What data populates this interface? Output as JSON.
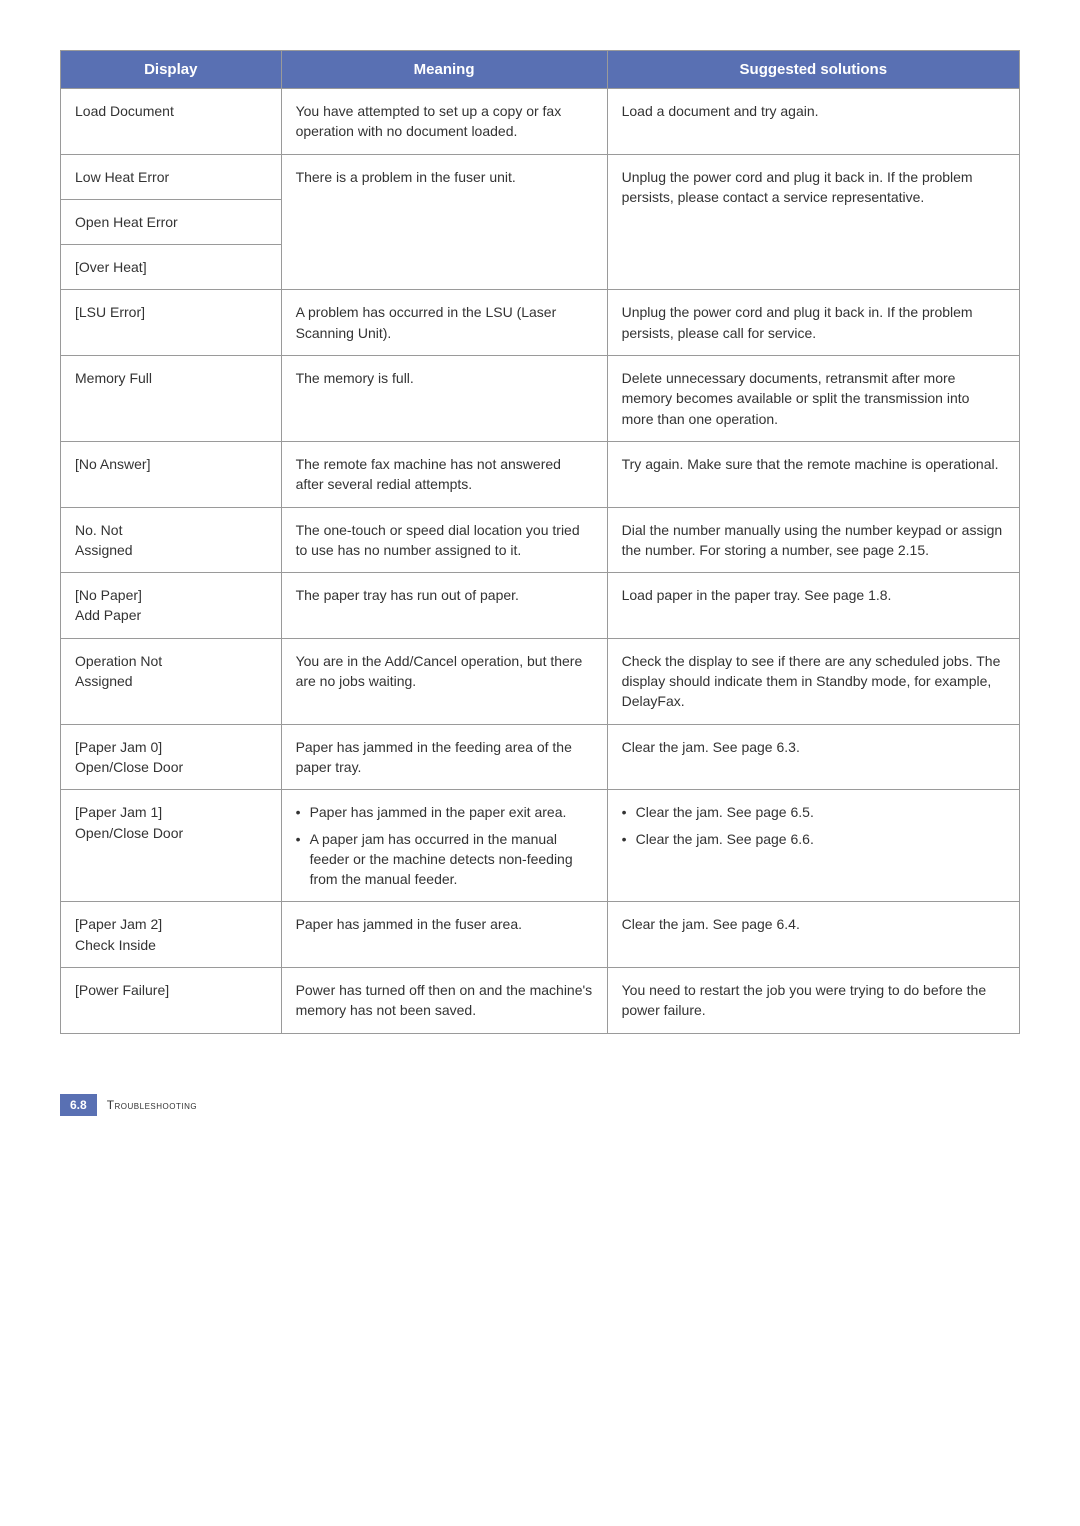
{
  "table": {
    "headers": {
      "display": "Display",
      "meaning": "Meaning",
      "solutions": "Suggested solutions"
    },
    "header_bg": "#5970b3",
    "header_text_color": "#ffffff",
    "border_color": "#9a9a9a",
    "rows": [
      {
        "display": "Load Document",
        "meaning": "You have attempted to set up a copy or fax operation with no document loaded.",
        "solution": "Load a document and try again."
      },
      {
        "display": "Low Heat Error",
        "meaning": "There is a problem in the fuser unit.",
        "solution": "Unplug the power cord and plug it back in. If the problem persists, please contact a service representative.",
        "meaning_rowspan": 3,
        "solution_rowspan": 3
      },
      {
        "display": "Open Heat Error"
      },
      {
        "display": "[Over Heat]"
      },
      {
        "display": "[LSU Error]",
        "meaning": "A problem has occurred in the LSU (Laser Scanning Unit).",
        "solution": "Unplug the power cord and plug it back in. If the problem persists, please call for service."
      },
      {
        "display": "Memory Full",
        "meaning": "The memory is full.",
        "solution": "Delete unnecessary documents, retransmit after more memory becomes available or split the transmission into more than one operation."
      },
      {
        "display": "[No Answer]",
        "meaning": "The remote fax machine has not answered after several redial attempts.",
        "solution": "Try again. Make sure that the remote machine is operational."
      },
      {
        "display": "No. Not\nAssigned",
        "meaning": "The one-touch or speed dial location you tried to use has no number assigned to it.",
        "solution": "Dial the number manually using the number keypad or assign the number. For storing a number, see page 2.15."
      },
      {
        "display": "[No Paper]\nAdd Paper",
        "meaning": "The paper tray has run out of paper.",
        "solution": "Load paper in the paper tray. See page 1.8."
      },
      {
        "display": "Operation Not\nAssigned",
        "meaning": "You are in the Add/Cancel operation, but there are no jobs waiting.",
        "solution": "Check the display to see if there are any scheduled jobs. The display should indicate them in Standby mode, for example, DelayFax."
      },
      {
        "display": "[Paper Jam 0]\nOpen/Close Door",
        "meaning": "Paper has jammed in the feeding area of the paper tray.",
        "solution": "Clear the jam. See page 6.3."
      },
      {
        "display": "[Paper Jam 1]\nOpen/Close Door",
        "meaning_list": [
          "Paper has jammed in the paper exit area.",
          "A paper jam has occurred in the manual feeder or the machine detects non-feeding from the manual feeder."
        ],
        "solution_list": [
          "Clear the jam. See page 6.5.",
          "Clear the jam. See page 6.6."
        ]
      },
      {
        "display": "[Paper Jam 2]\nCheck Inside",
        "meaning": "Paper has jammed in the fuser area.",
        "solution": "Clear the jam. See page 6.4."
      },
      {
        "display": "[Power Failure]",
        "meaning": "Power has turned off then on and the machine's memory has not been saved.",
        "solution": "You need to restart the job you were trying to do before the power failure."
      }
    ]
  },
  "footer": {
    "page_number": "6.8",
    "section": "Troubleshooting"
  }
}
